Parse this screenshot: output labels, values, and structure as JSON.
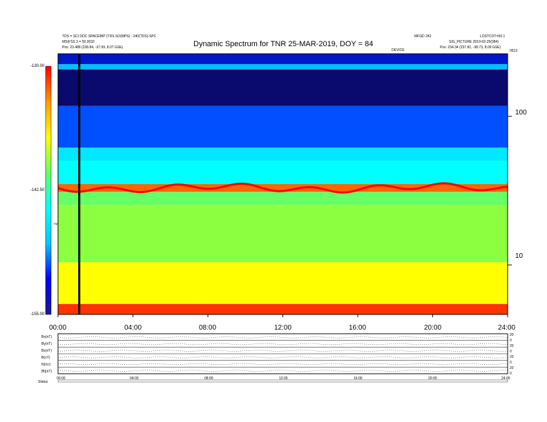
{
  "header": {
    "title": "Dynamic Spectrum for TNR 25-MAR-2019, DOY = 84",
    "left_line1": "TDS = SCI DOC SPACEBIP (TDS SO(MPS) - 240(TDS)-SPC",
    "left_line2": "MS(FSS 3 = 50.0032",
    "left_pos": "Pos:  23.488 (238.84, -37.99, 8.07 GSE)",
    "right_top": "MFGD 242",
    "right_top2": "LOSTCOT=50.1",
    "right_line2": "SIG_PICTURE  2019-03-25(084)",
    "right_pos": "Pos:  234.34 (237.81, -38.73, 8.09 GSE)",
    "center_small": "DEVICE",
    "corner_small": "0513"
  },
  "chart_data": [
    {
      "type": "heatmap",
      "title": "Dynamic Spectrum for TNR 25-MAR-2019, DOY = 84",
      "x_ticks": [
        "00:00",
        "04:00",
        "08:00",
        "12:00",
        "16:00",
        "20:00",
        "24:00"
      ],
      "y_scale": "log",
      "y_ticks": [
        "100",
        "10"
      ],
      "colorbar": {
        "ticks": [
          "-130.00",
          "-142.50",
          "-155.00"
        ],
        "range": [
          -155.0,
          -130.0
        ],
        "label": "TNR",
        "colors": [
          "#1a1a8c",
          "#0000ff",
          "#00c8ff",
          "#00ffff",
          "#66ff66",
          "#ffff00",
          "#ff9900",
          "#ff0000"
        ]
      },
      "bands": [
        {
          "from_frac": 0.0,
          "to_frac": 0.04,
          "color": "#0018c8"
        },
        {
          "from_frac": 0.04,
          "to_frac": 0.06,
          "color": "#00c0ff"
        },
        {
          "from_frac": 0.06,
          "to_frac": 0.2,
          "color": "#0a0a6e"
        },
        {
          "from_frac": 0.2,
          "to_frac": 0.36,
          "color": "#0050ff"
        },
        {
          "from_frac": 0.36,
          "to_frac": 0.41,
          "color": "#00e8ff"
        },
        {
          "from_frac": 0.41,
          "to_frac": 0.5,
          "color": "#00ffff"
        },
        {
          "from_frac": 0.5,
          "to_frac": 0.53,
          "color": "#ff6600"
        },
        {
          "from_frac": 0.53,
          "to_frac": 0.58,
          "color": "#66ff66"
        },
        {
          "from_frac": 0.58,
          "to_frac": 0.8,
          "color": "#8cff40"
        },
        {
          "from_frac": 0.8,
          "to_frac": 0.96,
          "color": "#ffff00"
        },
        {
          "from_frac": 0.96,
          "to_frac": 1.0,
          "color": "#ff3300"
        }
      ],
      "marker_time": "01:08"
    },
    {
      "type": "line",
      "x_ticks": [
        "00:00",
        "04:00",
        "08:00",
        "12:00",
        "16:00",
        "20:00",
        "24:00"
      ],
      "panels": [
        {
          "label": "Bx(nT)",
          "right_ticks": [
            "20",
            "0"
          ]
        },
        {
          "label": "By(nT)",
          "right_ticks": [
            "20",
            "0"
          ]
        },
        {
          "label": "Bz(nT)",
          "right_ticks": [
            "20",
            "0"
          ]
        },
        {
          "label": "B(nT)",
          "right_ticks": [
            "20",
            "0"
          ]
        },
        {
          "label": "N(/cc)",
          "right_ticks": [
            "20",
            "0"
          ]
        },
        {
          "label": "|B|(nT)",
          "right_ticks": [
            "20",
            "0"
          ]
        }
      ],
      "footer_left": "Status"
    }
  ]
}
